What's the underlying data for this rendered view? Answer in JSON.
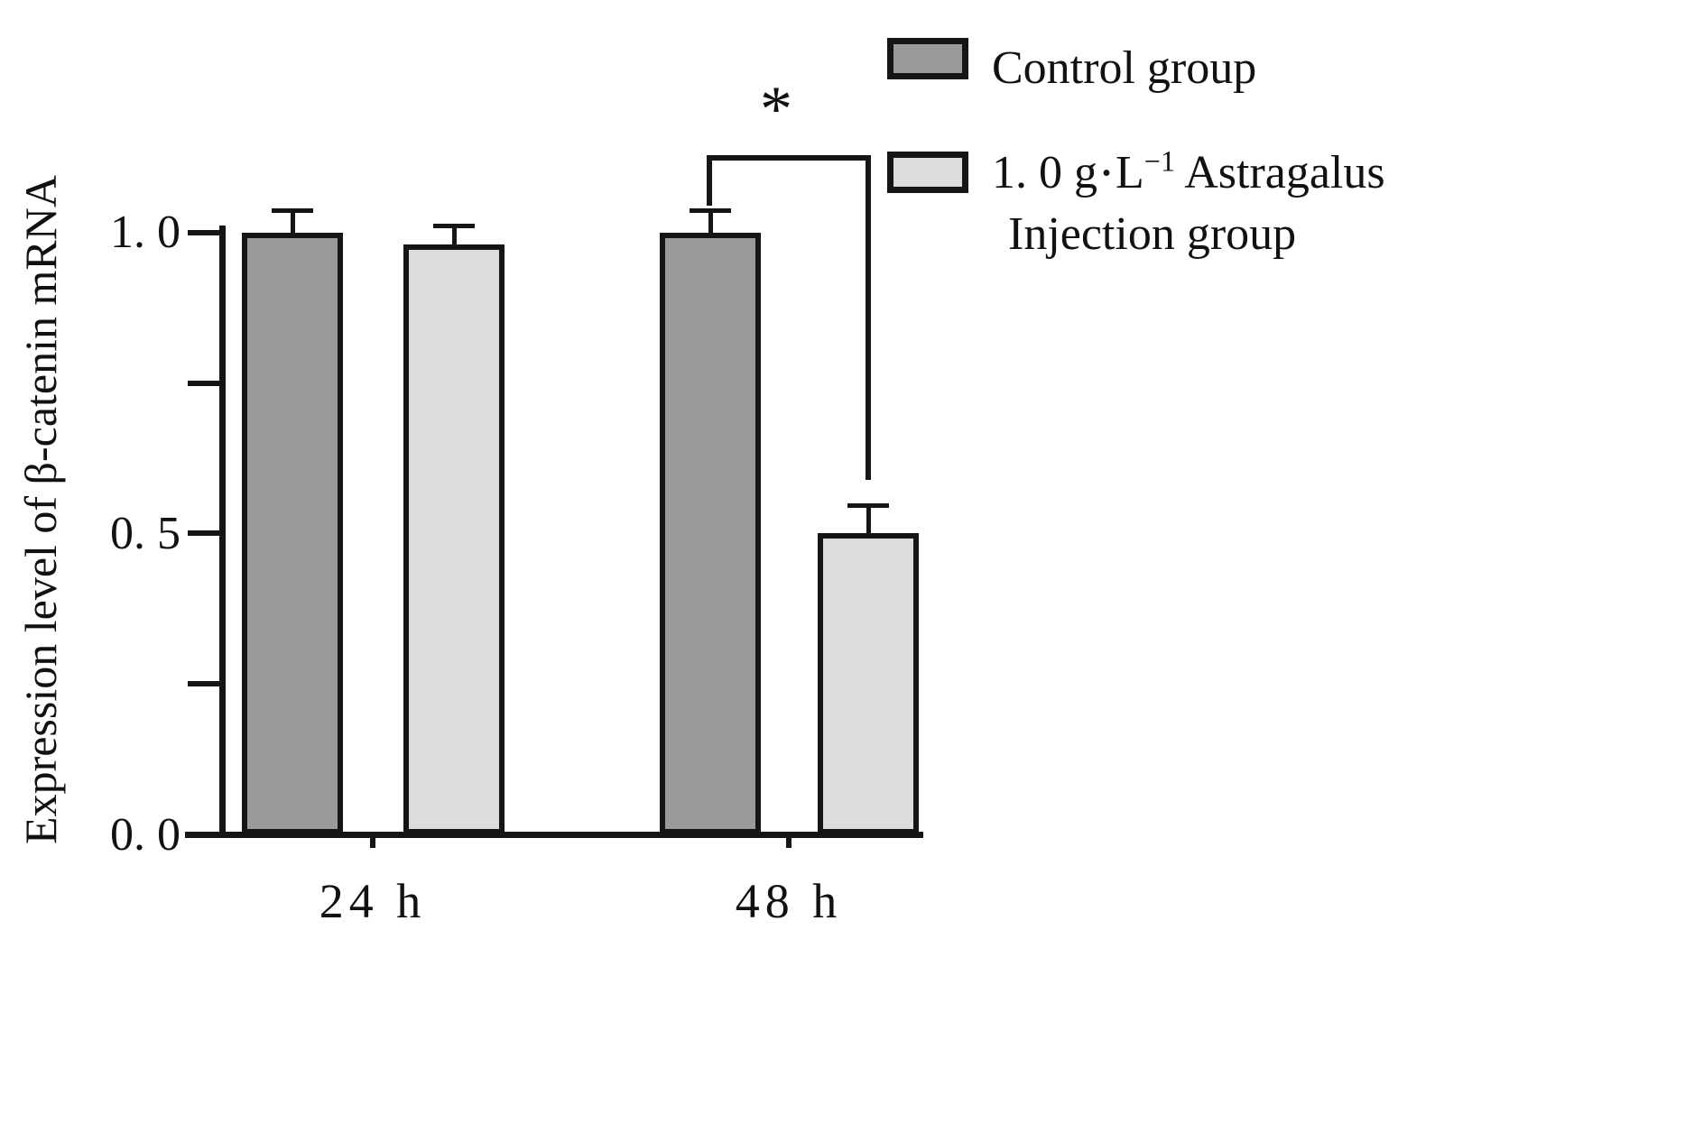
{
  "chart_data": {
    "type": "bar",
    "title": "",
    "ylabel": "Expression level of β-catenin mRNA",
    "xlabel": "",
    "categories": [
      "24 h",
      "48 h"
    ],
    "series": [
      {
        "key": "control",
        "name": "Control group",
        "color": "#9a9a9a",
        "values": [
          1.0,
          1.0
        ],
        "errors": [
          0.04,
          0.04
        ]
      },
      {
        "key": "astragalus",
        "name": "1. 0 g·L−1 Astragalus Injection group",
        "color": "#dcdcdc",
        "values": [
          0.98,
          0.5
        ],
        "errors": [
          0.035,
          0.05
        ]
      }
    ],
    "ylim": [
      0,
      1.08
    ],
    "yticks": [
      0,
      0.25,
      0.5,
      0.75,
      1.0
    ],
    "ytick_labels": [
      "0. 0",
      "",
      "0. 5",
      "",
      "1. 0"
    ],
    "grid": false,
    "legend_position": "top-right",
    "significance": {
      "label": "*",
      "category": "48 h",
      "between": [
        "Control group",
        "1. 0 g·L−1 Astragalus Injection group"
      ]
    }
  },
  "legend": {
    "astragalus_prefix": "1. 0  g",
    "astragalus_dot": "•",
    "astragalus_unit": "L",
    "astragalus_exp": "−1",
    "astragalus_rest": " Astragalus",
    "astragalus_line2": "Injection group"
  }
}
